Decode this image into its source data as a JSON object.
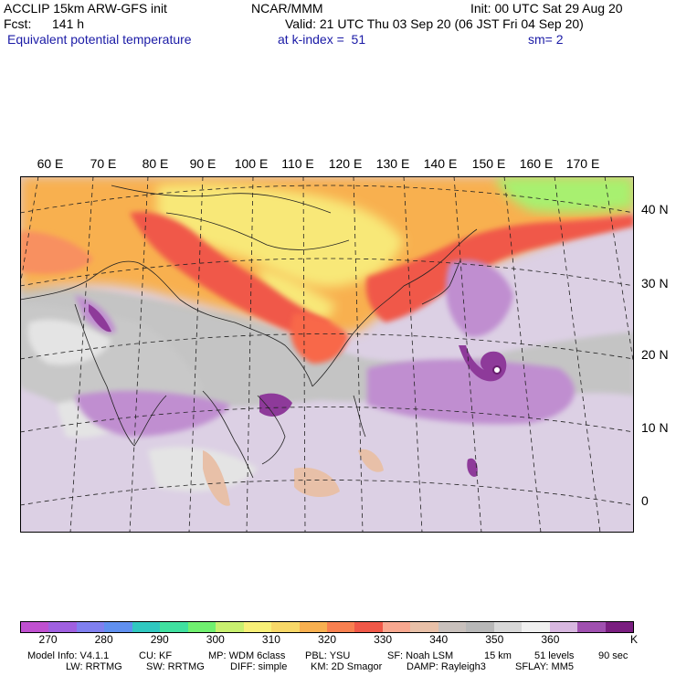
{
  "header": {
    "model": "ACCLIP 15km ARW-GFS init",
    "org": "NCAR/MMM",
    "init": "Init: 00 UTC Sat 29 Aug 20",
    "fcst_label": "Fcst:",
    "fcst_value": "141 h",
    "valid": "Valid: 21 UTC Thu 03 Sep 20 (06 JST Fri 04 Sep 20)",
    "field": "Equivalent potential temperature",
    "level": "at k-index =  51",
    "smoothing": "sm= 2"
  },
  "map": {
    "lon_labels": [
      "60 E",
      "70 E",
      "80 E",
      "90 E",
      "100 E",
      "110 E",
      "120 E",
      "130 E",
      "140 E",
      "150 E",
      "160 E",
      "170 E"
    ],
    "lat_labels": [
      "40 N",
      "30 N",
      "20 N",
      "10 N",
      "0"
    ],
    "features": {
      "typhoon": "cyclone eye east of Taiwan",
      "warm_region": "Tibetan Plateau / China",
      "cool_region": "Pacific / Indian Ocean"
    }
  },
  "colorbar": {
    "colors": [
      "#c050d0",
      "#a060e0",
      "#8080f0",
      "#6090f0",
      "#30c8c0",
      "#40e0a0",
      "#70f070",
      "#c8f070",
      "#f8f078",
      "#f8d868",
      "#f8b050",
      "#f88050",
      "#f05848",
      "#f8a890",
      "#e8c0a8",
      "#c8c0bc",
      "#b8b8b8",
      "#d8d8d8",
      "#f0f0f0",
      "#d8b8e0",
      "#a050b0",
      "#7a1e80"
    ],
    "tick_labels": [
      "270",
      "280",
      "290",
      "300",
      "310",
      "320",
      "330",
      "340",
      "350",
      "360"
    ],
    "unit": "K"
  },
  "model_info": {
    "line1": {
      "model_info": "Model Info: V4.1.1",
      "cu": "CU: KF",
      "mp": "MP: WDM 6class",
      "pbl": "PBL: YSU",
      "sf": "SF: Noah LSM",
      "res": "15 km",
      "levels": "51 levels",
      "dt": "90 sec"
    },
    "line2": {
      "lw": "LW: RRTMG",
      "sw": "SW: RRTMG",
      "diff": "DIFF: simple",
      "km": "KM: 2D Smagor",
      "damp": "DAMP: Rayleigh3",
      "sflay": "SFLAY: MM5"
    }
  }
}
